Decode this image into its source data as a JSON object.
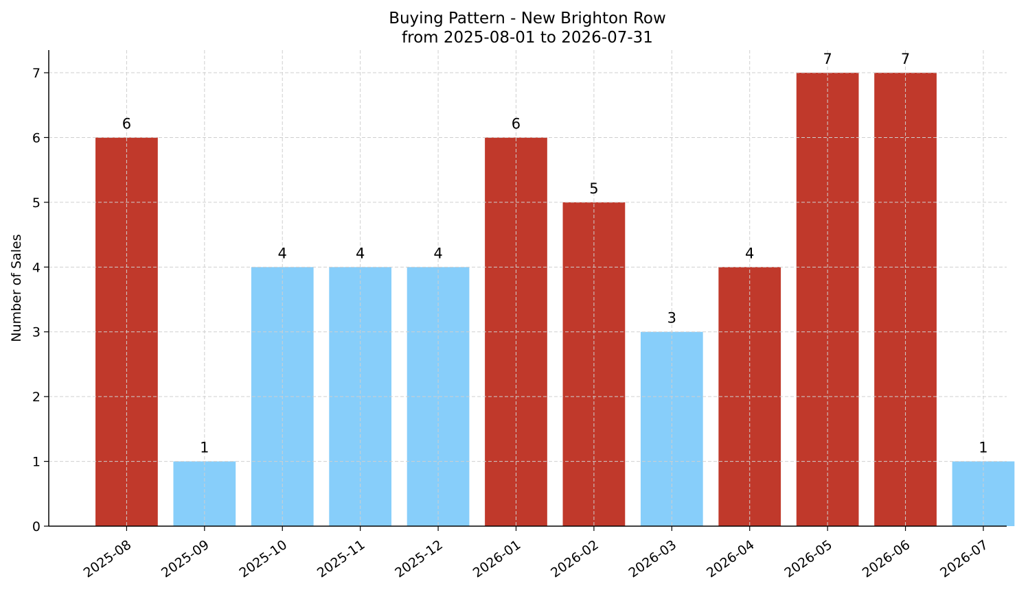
{
  "chart_data": {
    "type": "bar",
    "title": "Buying Pattern - New Brighton Row",
    "subtitle": "from 2025-08-01 to 2026-07-31",
    "xlabel": "",
    "ylabel": "Number of Sales",
    "categories": [
      "2025-08",
      "2025-09",
      "2025-10",
      "2025-11",
      "2025-12",
      "2026-01",
      "2026-02",
      "2026-03",
      "2026-04",
      "2026-05",
      "2026-06",
      "2026-07"
    ],
    "values": [
      6,
      1,
      4,
      4,
      4,
      6,
      5,
      3,
      4,
      7,
      7,
      1
    ],
    "data_labels": [
      "6",
      "1",
      "4",
      "4",
      "4",
      "6",
      "5",
      "3",
      "4",
      "7",
      "7",
      "1"
    ],
    "bar_colors": [
      "#c0392b",
      "#87cefa",
      "#87cefa",
      "#87cefa",
      "#87cefa",
      "#c0392b",
      "#c0392b",
      "#87cefa",
      "#c0392b",
      "#c0392b",
      "#c0392b",
      "#87cefa"
    ],
    "yticks": [
      0,
      1,
      2,
      3,
      4,
      5,
      6,
      7
    ],
    "ylim": [
      0,
      7.35
    ],
    "grid": true,
    "legend": "none"
  }
}
